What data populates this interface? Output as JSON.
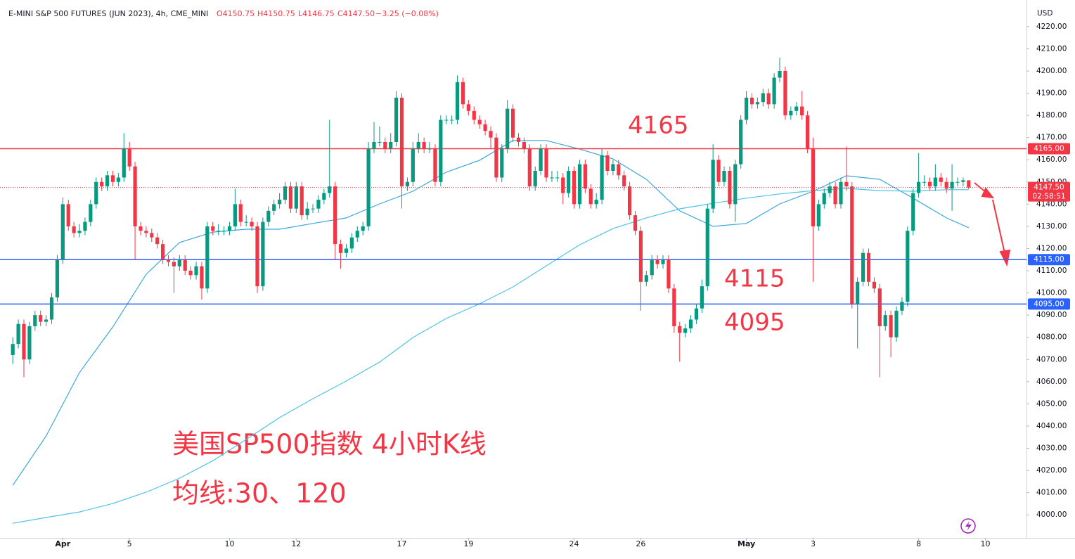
{
  "header": {
    "symbol": "E-MINI S&P 500 FUTURES (JUN 2023), 4h, CME_MINI",
    "open": "O4150.75",
    "high": "H4150.75",
    "low": "L4146.75",
    "close": "C4147.50",
    "change": "−3.25 (−0.08%)"
  },
  "chart_data": {
    "type": "candlestick",
    "currency": "USD",
    "open": [
      4072,
      4077,
      4086,
      4070,
      4085,
      4090,
      4087,
      4088,
      4098,
      4115,
      4140,
      4130,
      4127,
      4128,
      4132,
      4140,
      4150,
      4148,
      4153,
      4150,
      4152,
      4165,
      4157,
      4130,
      4128,
      4127,
      4125,
      4122,
      4115,
      4114,
      4112,
      4115,
      4110,
      4108,
      4112,
      4102,
      4130,
      4128,
      4128,
      4128,
      4130,
      4140,
      4132,
      4132,
      4130,
      4103,
      4132,
      4137,
      4140,
      4142,
      4148,
      4138,
      4148,
      4135,
      4138,
      4138,
      4142,
      4145,
      4148,
      4122,
      4118,
      4120,
      4125,
      4128,
      4130,
      4165,
      4168,
      4168,
      4165,
      4168,
      4188,
      4148,
      4150,
      4165,
      4168,
      4165,
      4165,
      4150,
      4178,
      4178,
      4178,
      4195,
      4185,
      4182,
      4178,
      4176,
      4173,
      4170,
      4152,
      4165,
      4183,
      4170,
      4168,
      4165,
      4148,
      4155,
      4165,
      4152,
      4152,
      4152,
      4145,
      4155,
      4140,
      4158,
      4147,
      4140,
      4142,
      4162,
      4155,
      4158,
      4153,
      4148,
      4135,
      4128,
      4105,
      4108,
      4115,
      4113,
      4115,
      4102,
      4085,
      4082,
      4084,
      4088,
      4093,
      4103,
      4138,
      4160,
      4150,
      4155,
      4140,
      4158,
      4178,
      4188,
      4185,
      4186,
      4190,
      4185,
      4197,
      4200,
      4180,
      4182,
      4184,
      4180,
      4165,
      4130,
      4140,
      4145,
      4148,
      4140,
      4150,
      4148,
      4095,
      4105,
      4118,
      4105,
      4102,
      4085,
      4090,
      4080,
      4092,
      4096,
      4128,
      4145,
      4150,
      4150,
      4148,
      4152,
      4150,
      4147,
      4150,
      4150,
      4150.75
    ],
    "high": [
      4080,
      4088,
      4088,
      4087,
      4092,
      4092,
      4090,
      4100,
      4117,
      4143,
      4142,
      4132,
      4131,
      4134,
      4142,
      4152,
      4152,
      4155,
      4155,
      4154,
      4172,
      4168,
      4159,
      4132,
      4130,
      4129,
      4127,
      4124,
      4117,
      4116,
      4117,
      4117,
      4112,
      4114,
      4114,
      4132,
      4132,
      4131,
      4130,
      4132,
      4147,
      4142,
      4135,
      4134,
      4132,
      4134,
      4139,
      4142,
      4145,
      4150,
      4150,
      4150,
      4150,
      4141,
      4140,
      4144,
      4147,
      4178,
      4150,
      4124,
      4122,
      4127,
      4130,
      4132,
      4168,
      4177,
      4175,
      4170,
      4172,
      4191,
      4190,
      4152,
      4168,
      4172,
      4170,
      4168,
      4167,
      4180,
      4180,
      4180,
      4198,
      4197,
      4187,
      4184,
      4180,
      4178,
      4175,
      4172,
      4167,
      4187,
      4185,
      4172,
      4170,
      4167,
      4157,
      4167,
      4167,
      4155,
      4155,
      4154,
      4157,
      4157,
      4160,
      4160,
      4149,
      4145,
      4165,
      4164,
      4160,
      4160,
      4155,
      4150,
      4137,
      4130,
      4110,
      4117,
      4117,
      4117,
      4117,
      4104,
      4087,
      4086,
      4090,
      4095,
      4106,
      4140,
      4167,
      4162,
      4157,
      4157,
      4160,
      4180,
      4191,
      4190,
      4188,
      4192,
      4192,
      4199,
      4206,
      4202,
      4184,
      4186,
      4191,
      4182,
      4170,
      4142,
      4147,
      4150,
      4150,
      4152,
      4166,
      4150,
      4107,
      4120,
      4120,
      4107,
      4104,
      4092,
      4092,
      4094,
      4098,
      4130,
      4147,
      4163,
      4153,
      4152,
      4158,
      4154,
      4152,
      4158,
      4152,
      4152,
      4150.75
    ],
    "low": [
      4068,
      4075,
      4062,
      4068,
      4083,
      4085,
      4085,
      4086,
      4096,
      4113,
      4128,
      4125,
      4125,
      4126,
      4130,
      4138,
      4146,
      4146,
      4148,
      4148,
      4150,
      4155,
      4115,
      4126,
      4125,
      4123,
      4120,
      4113,
      4112,
      4100,
      4110,
      4108,
      4106,
      4106,
      4097,
      4100,
      4126,
      4126,
      4126,
      4126,
      4128,
      4130,
      4130,
      4128,
      4100,
      4101,
      4130,
      4135,
      4138,
      4140,
      4136,
      4136,
      4133,
      4133,
      4136,
      4136,
      4140,
      4143,
      4115,
      4111,
      4116,
      4118,
      4123,
      4126,
      4128,
      4163,
      4166,
      4163,
      4163,
      4166,
      4138,
      4146,
      4148,
      4163,
      4163,
      4163,
      4148,
      4148,
      4176,
      4176,
      4176,
      4183,
      4180,
      4176,
      4174,
      4171,
      4165,
      4150,
      4150,
      4163,
      4168,
      4166,
      4163,
      4146,
      4146,
      4153,
      4150,
      4150,
      4150,
      4140,
      4143,
      4138,
      4138,
      4145,
      4138,
      4138,
      4140,
      4153,
      4153,
      4151,
      4146,
      4133,
      4126,
      4092,
      4103,
      4106,
      4111,
      4111,
      4100,
      4082,
      4069,
      4080,
      4082,
      4086,
      4091,
      4101,
      4136,
      4148,
      4148,
      4138,
      4132,
      4156,
      4176,
      4183,
      4183,
      4184,
      4183,
      4183,
      4195,
      4178,
      4178,
      4180,
      4178,
      4163,
      4105,
      4128,
      4138,
      4143,
      4138,
      4138,
      4146,
      4093,
      4075,
      4103,
      4103,
      4100,
      4062,
      4083,
      4071,
      4078,
      4090,
      4094,
      4126,
      4143,
      4148,
      4146,
      4146,
      4148,
      4145,
      4137,
      4148,
      4148,
      4146.75
    ],
    "close": [
      4077,
      4086,
      4070,
      4085,
      4090,
      4087,
      4088,
      4098,
      4115,
      4140,
      4130,
      4127,
      4128,
      4132,
      4140,
      4150,
      4148,
      4153,
      4150,
      4152,
      4165,
      4157,
      4130,
      4128,
      4127,
      4125,
      4122,
      4115,
      4114,
      4112,
      4115,
      4110,
      4108,
      4112,
      4102,
      4130,
      4128,
      4128,
      4128,
      4130,
      4140,
      4132,
      4132,
      4130,
      4103,
      4132,
      4137,
      4140,
      4142,
      4148,
      4138,
      4148,
      4135,
      4138,
      4138,
      4142,
      4145,
      4148,
      4122,
      4118,
      4120,
      4125,
      4128,
      4130,
      4165,
      4168,
      4168,
      4165,
      4168,
      4188,
      4148,
      4150,
      4165,
      4168,
      4165,
      4165,
      4150,
      4178,
      4178,
      4178,
      4195,
      4185,
      4182,
      4178,
      4176,
      4173,
      4170,
      4152,
      4165,
      4183,
      4170,
      4168,
      4165,
      4148,
      4155,
      4165,
      4152,
      4152,
      4152,
      4145,
      4155,
      4140,
      4158,
      4147,
      4140,
      4142,
      4162,
      4155,
      4158,
      4153,
      4148,
      4135,
      4128,
      4105,
      4108,
      4115,
      4113,
      4115,
      4102,
      4085,
      4082,
      4084,
      4088,
      4093,
      4103,
      4138,
      4160,
      4150,
      4155,
      4140,
      4158,
      4178,
      4188,
      4185,
      4186,
      4190,
      4185,
      4197,
      4200,
      4180,
      4182,
      4184,
      4180,
      4165,
      4130,
      4140,
      4145,
      4148,
      4140,
      4150,
      4148,
      4095,
      4105,
      4118,
      4105,
      4102,
      4085,
      4090,
      4080,
      4092,
      4096,
      4128,
      4145,
      4150,
      4150,
      4148,
      4152,
      4150,
      4147,
      4150,
      4150,
      4150.75,
      4147.5
    ],
    "up_color": "#089981",
    "down_color": "#f23645",
    "moving_averages": [
      {
        "color": "#3aa6dd",
        "x": [
          0,
          6,
          12,
          18,
          24,
          30,
          36,
          42,
          48,
          54,
          60,
          66,
          72,
          78,
          84,
          90,
          96,
          102,
          108,
          114,
          120,
          126,
          132,
          138,
          144,
          150,
          156,
          162,
          168,
          172
        ],
        "values": [
          4013.3,
          4035.5,
          4064.1,
          4084.7,
          4108.4,
          4122.7,
          4127.4,
          4128.7,
          4128.7,
          4131.3,
          4133.8,
          4140.1,
          4145.8,
          4154.4,
          4159.8,
          4168.7,
          4168.7,
          4164.8,
          4160.4,
          4151.2,
          4137.0,
          4130.0,
          4131.3,
          4140.1,
          4145.8,
          4152.8,
          4151.2,
          4142.7,
          4133.8,
          4129.4
        ]
      },
      {
        "color": "#4cc3e6",
        "x": [
          0,
          6,
          12,
          18,
          24,
          30,
          36,
          42,
          48,
          54,
          60,
          66,
          72,
          78,
          84,
          90,
          96,
          102,
          108,
          114,
          120,
          126,
          132,
          138,
          144,
          150,
          156,
          162,
          168,
          172
        ],
        "values": [
          3996.2,
          3998.8,
          4001.3,
          4005.1,
          4010.2,
          4016.5,
          4024.4,
          4034.0,
          4043.8,
          4052.3,
          4060.3,
          4068.8,
          4079.9,
          4088.5,
          4095.1,
          4102.7,
          4112.2,
          4121.7,
          4129.0,
          4133.8,
          4137.9,
          4140.4,
          4142.7,
          4144.6,
          4146.1,
          4147.1,
          4146.1,
          4145.8,
          4146.5,
          4146.5
        ]
      }
    ],
    "levels": [
      {
        "value": 4165,
        "label": "4165.00",
        "color": "#f23645",
        "annotation": "4165"
      },
      {
        "value": 4115,
        "label": "4115.00",
        "color": "#2962ff",
        "annotation": "4115"
      },
      {
        "value": 4095,
        "label": "4095.00",
        "color": "#2962ff",
        "annotation": "4095"
      }
    ],
    "last_price": {
      "value": 4147.5,
      "label": "4147.50",
      "countdown": "02:58:51",
      "color": "#f23645"
    },
    "xlim": [
      -2.3,
      182.4
    ],
    "ylim": [
      3989.6,
      4232
    ],
    "yticks": [
      {
        "value": 4000,
        "label": "4000.00"
      },
      {
        "value": 4010,
        "label": "4010.00"
      },
      {
        "value": 4020,
        "label": "4020.00"
      },
      {
        "value": 4030,
        "label": "4030.00"
      },
      {
        "value": 4040,
        "label": "4040.00"
      },
      {
        "value": 4050,
        "label": "4050.00"
      },
      {
        "value": 4060,
        "label": "4060.00"
      },
      {
        "value": 4070,
        "label": "4070.00"
      },
      {
        "value": 4080,
        "label": "4080.00"
      },
      {
        "value": 4090,
        "label": "4090.00"
      },
      {
        "value": 4100,
        "label": "4100.00"
      },
      {
        "value": 4110,
        "label": "4110.00"
      },
      {
        "value": 4120,
        "label": "4120.00"
      },
      {
        "value": 4130,
        "label": "4130.00"
      },
      {
        "value": 4140,
        "label": "4140.00"
      },
      {
        "value": 4150,
        "label": "4150.00"
      },
      {
        "value": 4160,
        "label": "4160.00"
      },
      {
        "value": 4170,
        "label": "4170.00"
      },
      {
        "value": 4180,
        "label": "4180.00"
      },
      {
        "value": 4190,
        "label": "4190.00"
      },
      {
        "value": 4200,
        "label": "4200.00"
      },
      {
        "value": 4210,
        "label": "4210.00"
      },
      {
        "value": 4220,
        "label": "4220.00"
      }
    ],
    "xticks": [
      {
        "value": 9,
        "label": "Apr"
      },
      {
        "value": 21,
        "label": "5"
      },
      {
        "value": 39,
        "label": "10"
      },
      {
        "value": 51,
        "label": "12"
      },
      {
        "value": 70,
        "label": "17"
      },
      {
        "value": 82,
        "label": "19"
      },
      {
        "value": 101,
        "label": "24"
      },
      {
        "value": 113,
        "label": "26"
      },
      {
        "value": 132,
        "label": "May"
      },
      {
        "value": 144,
        "label": "3"
      },
      {
        "value": 163,
        "label": "8"
      },
      {
        "value": 175,
        "label": "10"
      }
    ],
    "annotations": [
      "美国SP500指数 4小时K线",
      "均线:30、120"
    ]
  }
}
